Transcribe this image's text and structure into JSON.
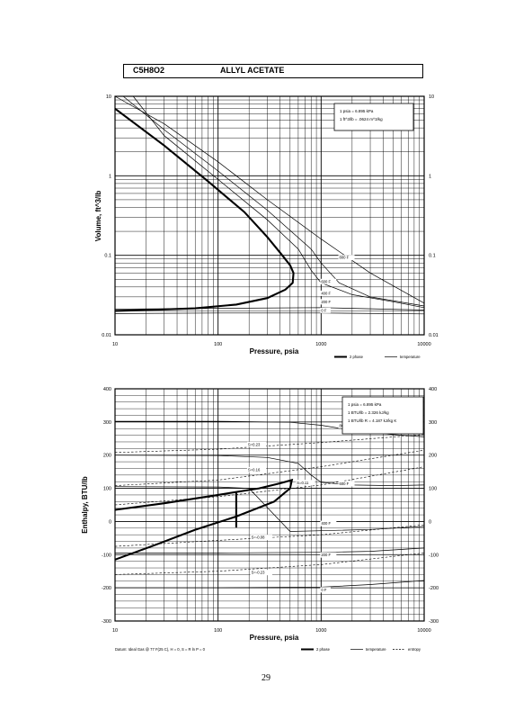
{
  "header": {
    "formula": "C5H8O2",
    "name": "ALLYL ACETATE"
  },
  "page_number": "29",
  "chart_data": [
    {
      "type": "line",
      "xscale": "log",
      "yscale": "log",
      "xlim": [
        10,
        10000
      ],
      "ylim": [
        0.01,
        10
      ],
      "xticks": [
        "10",
        "100",
        "1000",
        "10000"
      ],
      "yticks_left": [
        "0.01",
        "0.1",
        "1",
        "10"
      ],
      "yticks_right": [
        "0.01",
        "0.1",
        "1",
        "10"
      ],
      "xlabel": "Pressure, psia",
      "ylabel": "Volume, ft^3/lb",
      "grid": true,
      "note": [
        "1 psia = 6.895 kPa",
        "1 ft^3/lb = .0624 m^3/kg"
      ],
      "legend": [
        {
          "label": "2 phase",
          "style": "thick"
        },
        {
          "label": "temperature",
          "style": "thin"
        }
      ],
      "series": [
        {
          "role": "2 phase",
          "points": [
            [
              10,
              7.0
            ],
            [
              30,
              2.4
            ],
            [
              80,
              0.85
            ],
            [
              180,
              0.35
            ],
            [
              300,
              0.17
            ],
            [
              420,
              0.1
            ],
            [
              500,
              0.075
            ],
            [
              540,
              0.06
            ],
            [
              530,
              0.045
            ],
            [
              450,
              0.037
            ],
            [
              300,
              0.029
            ],
            [
              150,
              0.024
            ],
            [
              60,
              0.0215
            ],
            [
              20,
              0.0205
            ],
            [
              10,
              0.02
            ]
          ]
        },
        {
          "name": "800 F",
          "role": "temperature",
          "points": [
            [
              10,
              10
            ],
            [
              30,
              4.5
            ],
            [
              100,
              1.5
            ],
            [
              300,
              0.5
            ],
            [
              1000,
              0.16
            ],
            [
              3000,
              0.06
            ],
            [
              10000,
              0.025
            ]
          ]
        },
        {
          "name": "600 F",
          "role": "temperature",
          "points": [
            [
              12,
              10
            ],
            [
              30,
              3.8
            ],
            [
              100,
              1.15
            ],
            [
              300,
              0.37
            ],
            [
              800,
              0.12
            ],
            [
              1000,
              0.08
            ],
            [
              1500,
              0.045
            ],
            [
              3000,
              0.03
            ],
            [
              10000,
              0.023
            ]
          ]
        },
        {
          "name": "400 F",
          "role": "temperature",
          "points": [
            [
              15,
              10
            ],
            [
              30,
              3.2
            ],
            [
              100,
              0.9
            ],
            [
              300,
              0.28
            ],
            [
              600,
              0.12
            ],
            [
              800,
              0.065
            ],
            [
              1000,
              0.045
            ],
            [
              2000,
              0.032
            ],
            [
              5000,
              0.026
            ],
            [
              10000,
              0.022
            ]
          ]
        },
        {
          "name": "200 F",
          "role": "temperature",
          "points": [
            [
              10,
              0.021
            ],
            [
              100,
              0.0215
            ],
            [
              1000,
              0.022
            ],
            [
              10000,
              0.0205
            ]
          ]
        },
        {
          "name": "0 F",
          "role": "temperature",
          "points": [
            [
              10,
              0.0185
            ],
            [
              100,
              0.0188
            ],
            [
              1000,
              0.0188
            ],
            [
              10000,
              0.0183
            ]
          ]
        }
      ],
      "series_labels": [
        {
          "text": "800 F",
          "x": 1500,
          "y": 0.09
        },
        {
          "text": "600 F",
          "x": 1000,
          "y": 0.045
        },
        {
          "text": "400 F",
          "x": 1000,
          "y": 0.032
        },
        {
          "text": "200 F",
          "x": 1000,
          "y": 0.025
        },
        {
          "text": "0 F",
          "x": 1000,
          "y": 0.0195
        }
      ]
    },
    {
      "type": "line",
      "xscale": "log",
      "xlim": [
        10,
        10000
      ],
      "ylim": [
        -300,
        400
      ],
      "xticks": [
        "10",
        "100",
        "1000",
        "10000"
      ],
      "yticks_left": [
        "-300",
        "-200",
        "-100",
        "0",
        "100",
        "200",
        "300",
        "400"
      ],
      "yticks_right": [
        "-300",
        "-200",
        "-100",
        "0",
        "100",
        "200",
        "300",
        "400"
      ],
      "xlabel": "Pressure, psia",
      "ylabel": "Enthalpy, BTU/lb",
      "grid": true,
      "note": [
        "1 psia = 6.895 kPa",
        "1 BTU/lb = 2.326 kJ/kg",
        "1 BTU/lb R = 4.187 kJ/kg K"
      ],
      "legend": [
        {
          "label": "2 phase",
          "style": "thick"
        },
        {
          "label": "temperature",
          "style": "thin"
        },
        {
          "label": "entropy",
          "style": "dashed"
        }
      ],
      "datum_note": "Datum: Ideal Gas @ 77 F(25 C), H = 0, S = R ln P = 0",
      "series": [
        {
          "role": "2 phase",
          "points": [
            [
              10,
              35
            ],
            [
              30,
              55
            ],
            [
              100,
              80
            ],
            [
              250,
              100
            ],
            [
              400,
              115
            ],
            [
              520,
              125
            ],
            [
              500,
              100
            ],
            [
              350,
              60
            ],
            [
              150,
              15
            ],
            [
              60,
              -25
            ],
            [
              25,
              -70
            ],
            [
              10,
              -115
            ]
          ]
        },
        {
          "role": "2 phase",
          "points": [
            [
              150,
              88
            ],
            [
              150,
              -18
            ]
          ]
        },
        {
          "name": "800 F",
          "role": "temperature",
          "points": [
            [
              10,
              302
            ],
            [
              100,
              302
            ],
            [
              500,
              299
            ],
            [
              1000,
              290
            ],
            [
              2000,
              275
            ],
            [
              5000,
              262
            ],
            [
              10000,
              255
            ]
          ]
        },
        {
          "name": "600 F",
          "role": "temperature",
          "points": [
            [
              10,
              200
            ],
            [
              100,
              199
            ],
            [
              300,
              193
            ],
            [
              600,
              175
            ],
            [
              800,
              140
            ],
            [
              1000,
              118
            ],
            [
              2000,
              110
            ],
            [
              5000,
              108
            ],
            [
              10000,
              110
            ]
          ]
        },
        {
          "name": "400 F",
          "role": "temperature",
          "points": [
            [
              10,
              105
            ],
            [
              100,
              104
            ],
            [
              200,
              100
            ],
            [
              500,
              -30
            ],
            [
              1000,
              -28
            ],
            [
              3000,
              -24
            ],
            [
              10000,
              -15
            ]
          ]
        },
        {
          "name": "200 F",
          "role": "temperature",
          "points": [
            [
              10,
              -95
            ],
            [
              100,
              -95
            ],
            [
              1000,
              -93
            ],
            [
              3000,
              -90
            ],
            [
              10000,
              -80
            ]
          ]
        },
        {
          "name": "0 F",
          "role": "temperature",
          "points": [
            [
              10,
              -200
            ],
            [
              100,
              -200
            ],
            [
              1000,
              -198
            ],
            [
              3000,
              -190
            ],
            [
              10000,
              -178
            ]
          ]
        },
        {
          "name": "S=0.23",
          "role": "entropy",
          "points": [
            [
              10,
              208
            ],
            [
              100,
              218
            ],
            [
              1000,
              238
            ],
            [
              10000,
              262
            ]
          ]
        },
        {
          "name": "S=0.16",
          "role": "entropy",
          "points": [
            [
              10,
              108
            ],
            [
              100,
              125
            ],
            [
              1000,
              165
            ],
            [
              10000,
              215
            ]
          ]
        },
        {
          "name": "S=0.11",
          "role": "entropy",
          "points": [
            [
              10,
              50
            ],
            [
              100,
              75
            ],
            [
              1000,
              110
            ],
            [
              10000,
              165
            ]
          ]
        },
        {
          "name": "S=-0.08",
          "role": "entropy",
          "points": [
            [
              10,
              -75
            ],
            [
              100,
              -57
            ],
            [
              1000,
              -40
            ],
            [
              10000,
              -10
            ]
          ]
        },
        {
          "name": "S=-0.23",
          "role": "entropy",
          "points": [
            [
              10,
              -160
            ],
            [
              100,
              -150
            ],
            [
              1000,
              -130
            ],
            [
              10000,
              -95
            ]
          ]
        }
      ],
      "series_labels": [
        {
          "text": "S=0.23",
          "x": 195,
          "y": 228
        },
        {
          "text": "S=0.16",
          "x": 195,
          "y": 152
        },
        {
          "text": "800 F",
          "x": 1500,
          "y": 285
        },
        {
          "text": "S=0.11",
          "x": 580,
          "y": 113
        },
        {
          "text": "600 F",
          "x": 1500,
          "y": 110
        },
        {
          "text": "400 F",
          "x": 1000,
          "y": -10
        },
        {
          "text": "S=-0.08",
          "x": 210,
          "y": -52
        },
        {
          "text": "200 F",
          "x": 1000,
          "y": -105
        },
        {
          "text": "S=-0.23",
          "x": 210,
          "y": -158
        },
        {
          "text": "0 F",
          "x": 1000,
          "y": -210
        }
      ]
    }
  ]
}
